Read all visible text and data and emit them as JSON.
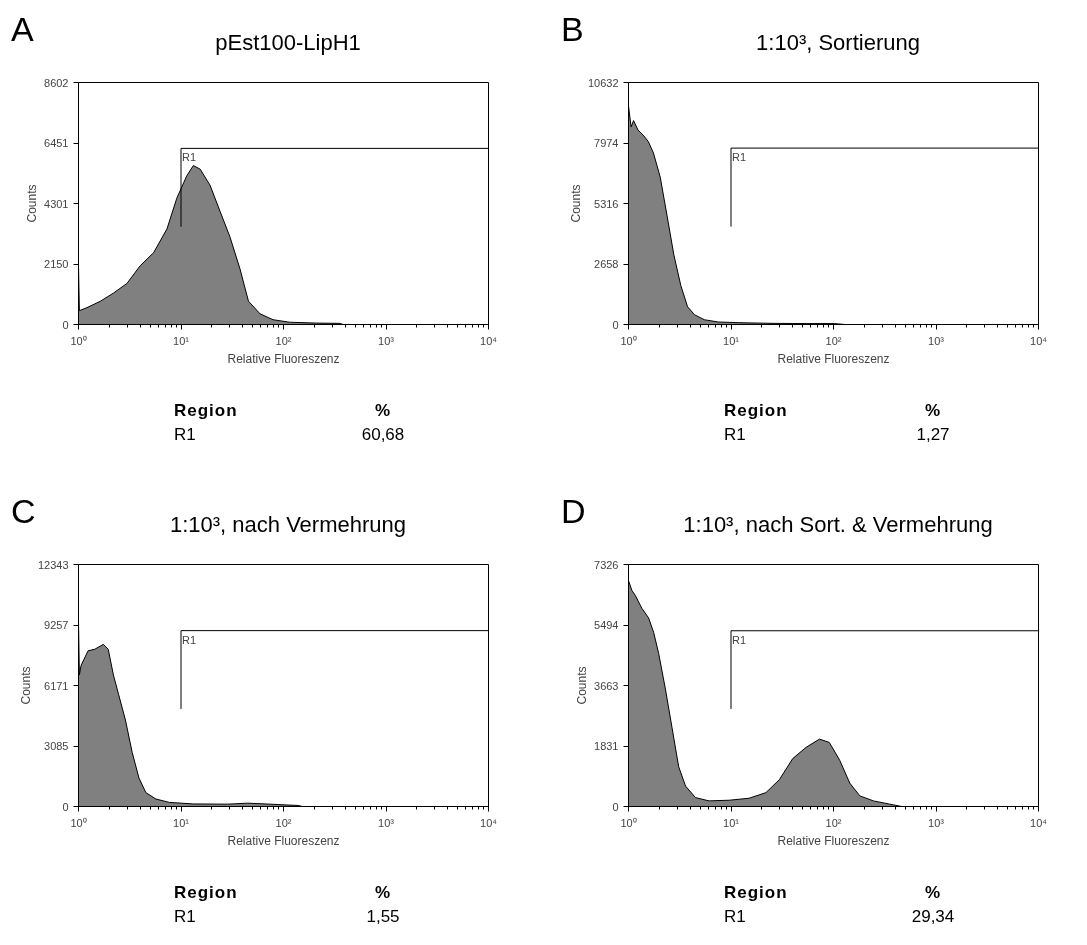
{
  "chart_data": [
    {
      "type": "area",
      "title": "pEst100-LipH1",
      "xlabel": "Relative Fluoreszenz",
      "ylabel": "Counts",
      "log": "x",
      "grid": false,
      "annotations": [
        "A",
        "Region",
        "%",
        "R1",
        "60,68"
      ],
      "ref_lines": [
        {
          "axis": "x",
          "value": 10,
          "label": "R1"
        },
        {
          "axis": "y",
          "value": 6260
        }
      ],
      "xlim": [
        1,
        10000
      ],
      "xticks": [
        {
          "value": 1,
          "label": "10⁰"
        },
        {
          "value": 10,
          "label": "10¹"
        },
        {
          "value": 100,
          "label": "10²"
        },
        {
          "value": 1000,
          "label": "10³"
        },
        {
          "value": 10000,
          "label": "10⁴"
        }
      ],
      "ylim": [
        0,
        8602
      ],
      "yticks": [
        0,
        2150,
        4301,
        6451,
        8602
      ],
      "series": [
        {
          "color": "#808080",
          "x": [
            1,
            1.02,
            1.21,
            1.64,
            2.2,
            2.97,
            4.0,
            5.4,
            7.3,
            9.1,
            11.4,
            13.2,
            15.4,
            19.2,
            24,
            30,
            37.6,
            45.5,
            59,
            79,
            115,
            210,
            355,
            380,
            10000
          ],
          "values": [
            2090,
            490,
            600,
            830,
            1120,
            1460,
            2090,
            2550,
            3400,
            4490,
            5290,
            5650,
            5520,
            4950,
            4030,
            3120,
            1980,
            830,
            380,
            170,
            80,
            50,
            40,
            0,
            0
          ]
        }
      ]
    },
    {
      "type": "area",
      "title": "1:10³, Sortierung",
      "xlabel": "Relative Fluoreszenz",
      "ylabel": "Counts",
      "log": "x",
      "grid": false,
      "annotations": [
        "B",
        "Region",
        "%",
        "R1",
        "1,27"
      ],
      "ref_lines": [
        {
          "axis": "x",
          "value": 10,
          "label": "R1"
        },
        {
          "axis": "y",
          "value": 7750
        }
      ],
      "xlim": [
        1,
        10000
      ],
      "xticks": [
        {
          "value": 1,
          "label": "10⁰"
        },
        {
          "value": 10,
          "label": "10¹"
        },
        {
          "value": 100,
          "label": "10²"
        },
        {
          "value": 1000,
          "label": "10³"
        },
        {
          "value": 10000,
          "label": "10⁴"
        }
      ],
      "ylim": [
        0,
        10632
      ],
      "yticks": [
        0,
        2658,
        5316,
        7974,
        10632
      ],
      "series": [
        {
          "color": "#808080",
          "x": [
            1,
            1.06,
            1.12,
            1.24,
            1.39,
            1.56,
            1.75,
            2.04,
            2.38,
            2.77,
            3.24,
            3.77,
            4.4,
            5.5,
            7.5,
            11.9,
            25.7,
            55,
            102,
            129,
            10000
          ],
          "values": [
            9600,
            8680,
            8960,
            8540,
            8320,
            8040,
            7540,
            6470,
            4770,
            3060,
            1710,
            780,
            430,
            210,
            110,
            80,
            50,
            40,
            40,
            0,
            0
          ]
        }
      ]
    },
    {
      "type": "area",
      "title": "1:10³, nach Vermehrung",
      "xlabel": "Relative Fluoreszenz",
      "ylabel": "Counts",
      "log": "x",
      "grid": false,
      "annotations": [
        "C",
        "Region",
        "%",
        "R1",
        "1,55"
      ],
      "ref_lines": [
        {
          "axis": "x",
          "value": 10,
          "label": "R1"
        },
        {
          "axis": "y",
          "value": 8970
        }
      ],
      "xlim": [
        1,
        10000
      ],
      "xticks": [
        {
          "value": 1,
          "label": "10⁰"
        },
        {
          "value": 10,
          "label": "10¹"
        },
        {
          "value": 100,
          "label": "10²"
        },
        {
          "value": 1000,
          "label": "10³"
        },
        {
          "value": 10000,
          "label": "10⁴"
        }
      ],
      "ylim": [
        0,
        12343
      ],
      "yticks": [
        0,
        3085,
        6171,
        9257,
        12343
      ],
      "series": [
        {
          "color": "#808080",
          "x": [
            1,
            1.02,
            1.06,
            1.24,
            1.44,
            1.75,
            1.95,
            2.19,
            2.46,
            2.87,
            3.34,
            3.89,
            4.54,
            5.7,
            7.7,
            13.2,
            28.3,
            44.8,
            89,
            141,
            152,
            10000
          ],
          "values": [
            9470,
            6710,
            7200,
            7940,
            8020,
            8270,
            8020,
            6710,
            5720,
            4410,
            2760,
            1450,
            710,
            380,
            210,
            130,
            120,
            170,
            100,
            50,
            0,
            0
          ]
        }
      ]
    },
    {
      "type": "area",
      "title": "1:10³, nach Sort. & Vermehrung",
      "xlabel": "Relative Fluoreszenz",
      "ylabel": "Counts",
      "log": "x",
      "grid": false,
      "annotations": [
        "D",
        "Region",
        "%",
        "R1",
        "29,34"
      ],
      "ref_lines": [
        {
          "axis": "x",
          "value": 10,
          "label": "R1"
        },
        {
          "axis": "y",
          "value": 5320
        }
      ],
      "xlim": [
        1,
        10000
      ],
      "xticks": [
        {
          "value": 1,
          "label": "10⁰"
        },
        {
          "value": 10,
          "label": "10¹"
        },
        {
          "value": 100,
          "label": "10²"
        },
        {
          "value": 1000,
          "label": "10³"
        },
        {
          "value": 10000,
          "label": "10⁴"
        }
      ],
      "ylim": [
        0,
        7326
      ],
      "yticks": [
        0,
        1831,
        3663,
        5494,
        7326
      ],
      "series": [
        {
          "color": "#808080",
          "x": [
            1,
            1.08,
            1.16,
            1.35,
            1.57,
            1.76,
            1.97,
            2.29,
            2.66,
            3.09,
            3.6,
            4.5,
            6.1,
            9.6,
            15,
            21.9,
            29.6,
            40,
            54,
            73,
            91,
            115,
            144,
            181,
            245,
            355,
            464,
            10000
          ],
          "values": [
            6840,
            6540,
            6400,
            6000,
            5710,
            5270,
            4630,
            3560,
            2380,
            1200,
            620,
            270,
            170,
            190,
            250,
            420,
            810,
            1450,
            1790,
            2040,
            1940,
            1400,
            710,
            320,
            170,
            70,
            0,
            0
          ]
        }
      ]
    }
  ]
}
